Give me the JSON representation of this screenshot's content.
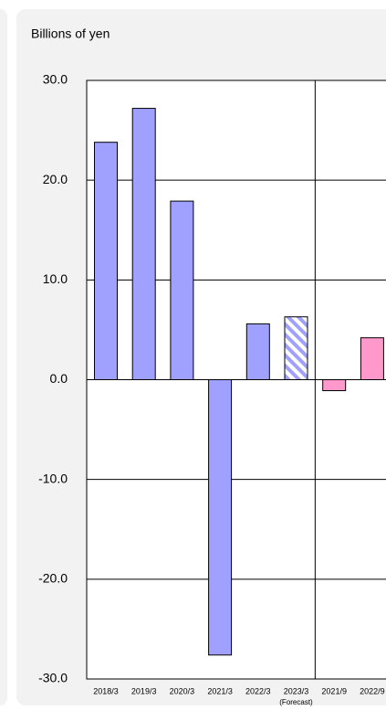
{
  "chart_data": {
    "type": "bar",
    "y_label": "Billions of yen",
    "categories": [
      "2018/3",
      "2019/3",
      "2020/3",
      "2021/3",
      "2022/3",
      "2023/3",
      "2021/9",
      "2022/9"
    ],
    "annotation": "(Forecast)",
    "values": [
      23.8,
      27.2,
      17.9,
      -27.6,
      5.6,
      6.3,
      -1.1,
      4.2
    ],
    "colors": [
      "#a0a0ff",
      "#a0a0ff",
      "#a0a0ff",
      "#a0a0ff",
      "#a0a0ff",
      "#a0a0ff",
      "#ff99cc",
      "#ff99cc"
    ],
    "patterns": [
      null,
      null,
      null,
      null,
      null,
      "hatch",
      null,
      null
    ],
    "divider_after": 5,
    "ylim": [
      -30,
      30
    ],
    "yticks": [
      {
        "value": -30,
        "label": "-30.0"
      },
      {
        "value": -20,
        "label": "-20.0"
      },
      {
        "value": -10,
        "label": "-10.0"
      },
      {
        "value": 0,
        "label": "0.0"
      },
      {
        "value": 10,
        "label": "10.0"
      },
      {
        "value": 20,
        "label": "20.0"
      },
      {
        "value": 30,
        "label": "30.0"
      }
    ],
    "grid": true
  }
}
